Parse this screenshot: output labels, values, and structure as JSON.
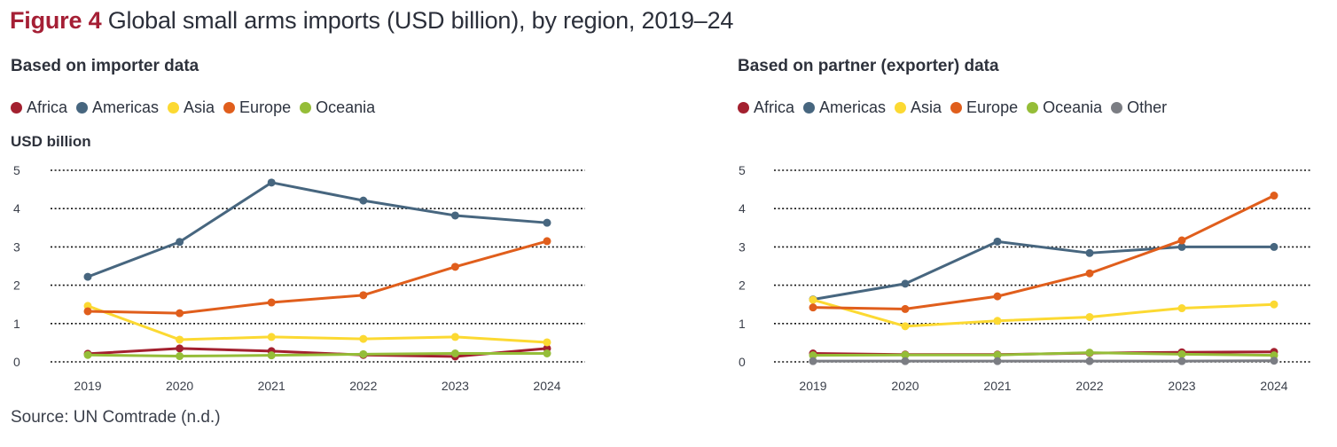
{
  "figure": {
    "label": "Figure 4",
    "title": "Global small arms imports (USD billion), by region, 2019–24",
    "source": "Source: UN Comtrade (n.d.)",
    "unit_label": "USD billion"
  },
  "colors": {
    "Africa": "#a3202f",
    "Americas": "#47667f",
    "Asia": "#fcd932",
    "Europe": "#e05e1c",
    "Oceania": "#95bd38",
    "Other": "#7b7d83"
  },
  "chart_data": [
    {
      "type": "line",
      "title": "Based on importer data",
      "xlabel": "",
      "ylabel": "USD billion",
      "x": [
        "2019",
        "2020",
        "2021",
        "2022",
        "2023",
        "2024"
      ],
      "ylim": [
        0,
        5
      ],
      "yticks": [
        "0",
        "1",
        "2",
        "3",
        "4",
        "5"
      ],
      "grid": true,
      "legend": "top",
      "series": [
        {
          "name": "Africa",
          "values": [
            0.21,
            0.35,
            0.28,
            0.18,
            0.14,
            0.35
          ]
        },
        {
          "name": "Americas",
          "values": [
            2.22,
            3.13,
            4.68,
            4.21,
            3.82,
            3.63
          ]
        },
        {
          "name": "Asia",
          "values": [
            1.46,
            0.58,
            0.65,
            0.6,
            0.65,
            0.51
          ]
        },
        {
          "name": "Europe",
          "values": [
            1.32,
            1.27,
            1.55,
            1.74,
            2.48,
            3.15
          ]
        },
        {
          "name": "Oceania",
          "values": [
            0.18,
            0.15,
            0.17,
            0.2,
            0.22,
            0.22
          ]
        }
      ]
    },
    {
      "type": "line",
      "title": "Based on partner (exporter) data",
      "xlabel": "",
      "ylabel": "USD billion",
      "x": [
        "2019",
        "2020",
        "2021",
        "2022",
        "2023",
        "2024"
      ],
      "ylim": [
        0,
        5
      ],
      "yticks": [
        "0",
        "1",
        "2",
        "3",
        "4",
        "5"
      ],
      "grid": true,
      "legend": "top",
      "series": [
        {
          "name": "Africa",
          "values": [
            0.22,
            0.19,
            0.19,
            0.23,
            0.25,
            0.26
          ]
        },
        {
          "name": "Americas",
          "values": [
            1.63,
            2.04,
            3.14,
            2.84,
            3.0,
            3.0
          ]
        },
        {
          "name": "Asia",
          "values": [
            1.62,
            0.93,
            1.07,
            1.17,
            1.4,
            1.5
          ]
        },
        {
          "name": "Europe",
          "values": [
            1.42,
            1.38,
            1.71,
            2.31,
            3.17,
            4.34
          ]
        },
        {
          "name": "Oceania",
          "values": [
            0.17,
            0.18,
            0.18,
            0.24,
            0.2,
            0.17
          ]
        },
        {
          "name": "Other",
          "values": [
            0.02,
            0.02,
            0.02,
            0.02,
            0.02,
            0.03
          ]
        }
      ]
    }
  ]
}
